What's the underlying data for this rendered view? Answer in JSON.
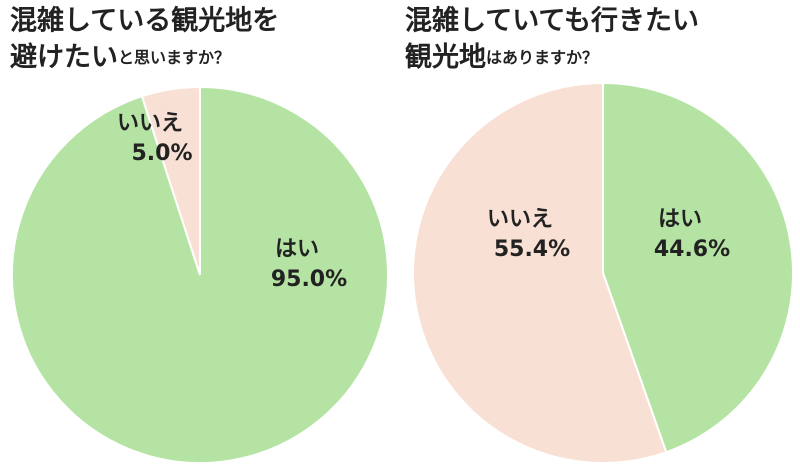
{
  "chart_data": [
    {
      "type": "pie",
      "title": [
        "混雑している観光地を",
        "避けたい",
        "と思いますか？"
      ],
      "categories": [
        "はい",
        "いいえ"
      ],
      "values": [
        95.0,
        5.0
      ],
      "value_labels": [
        "95.0%",
        "5.0%"
      ],
      "colors": [
        "#b5e3a3",
        "#f9e0d5"
      ]
    },
    {
      "type": "pie",
      "title": [
        "混雑していても行きたい",
        "観光地",
        "はありますか？"
      ],
      "categories": [
        "はい",
        "いいえ"
      ],
      "values": [
        44.6,
        55.4
      ],
      "value_labels": [
        "44.6%",
        "55.4%"
      ],
      "colors": [
        "#b5e3a3",
        "#f9e0d5"
      ]
    }
  ]
}
